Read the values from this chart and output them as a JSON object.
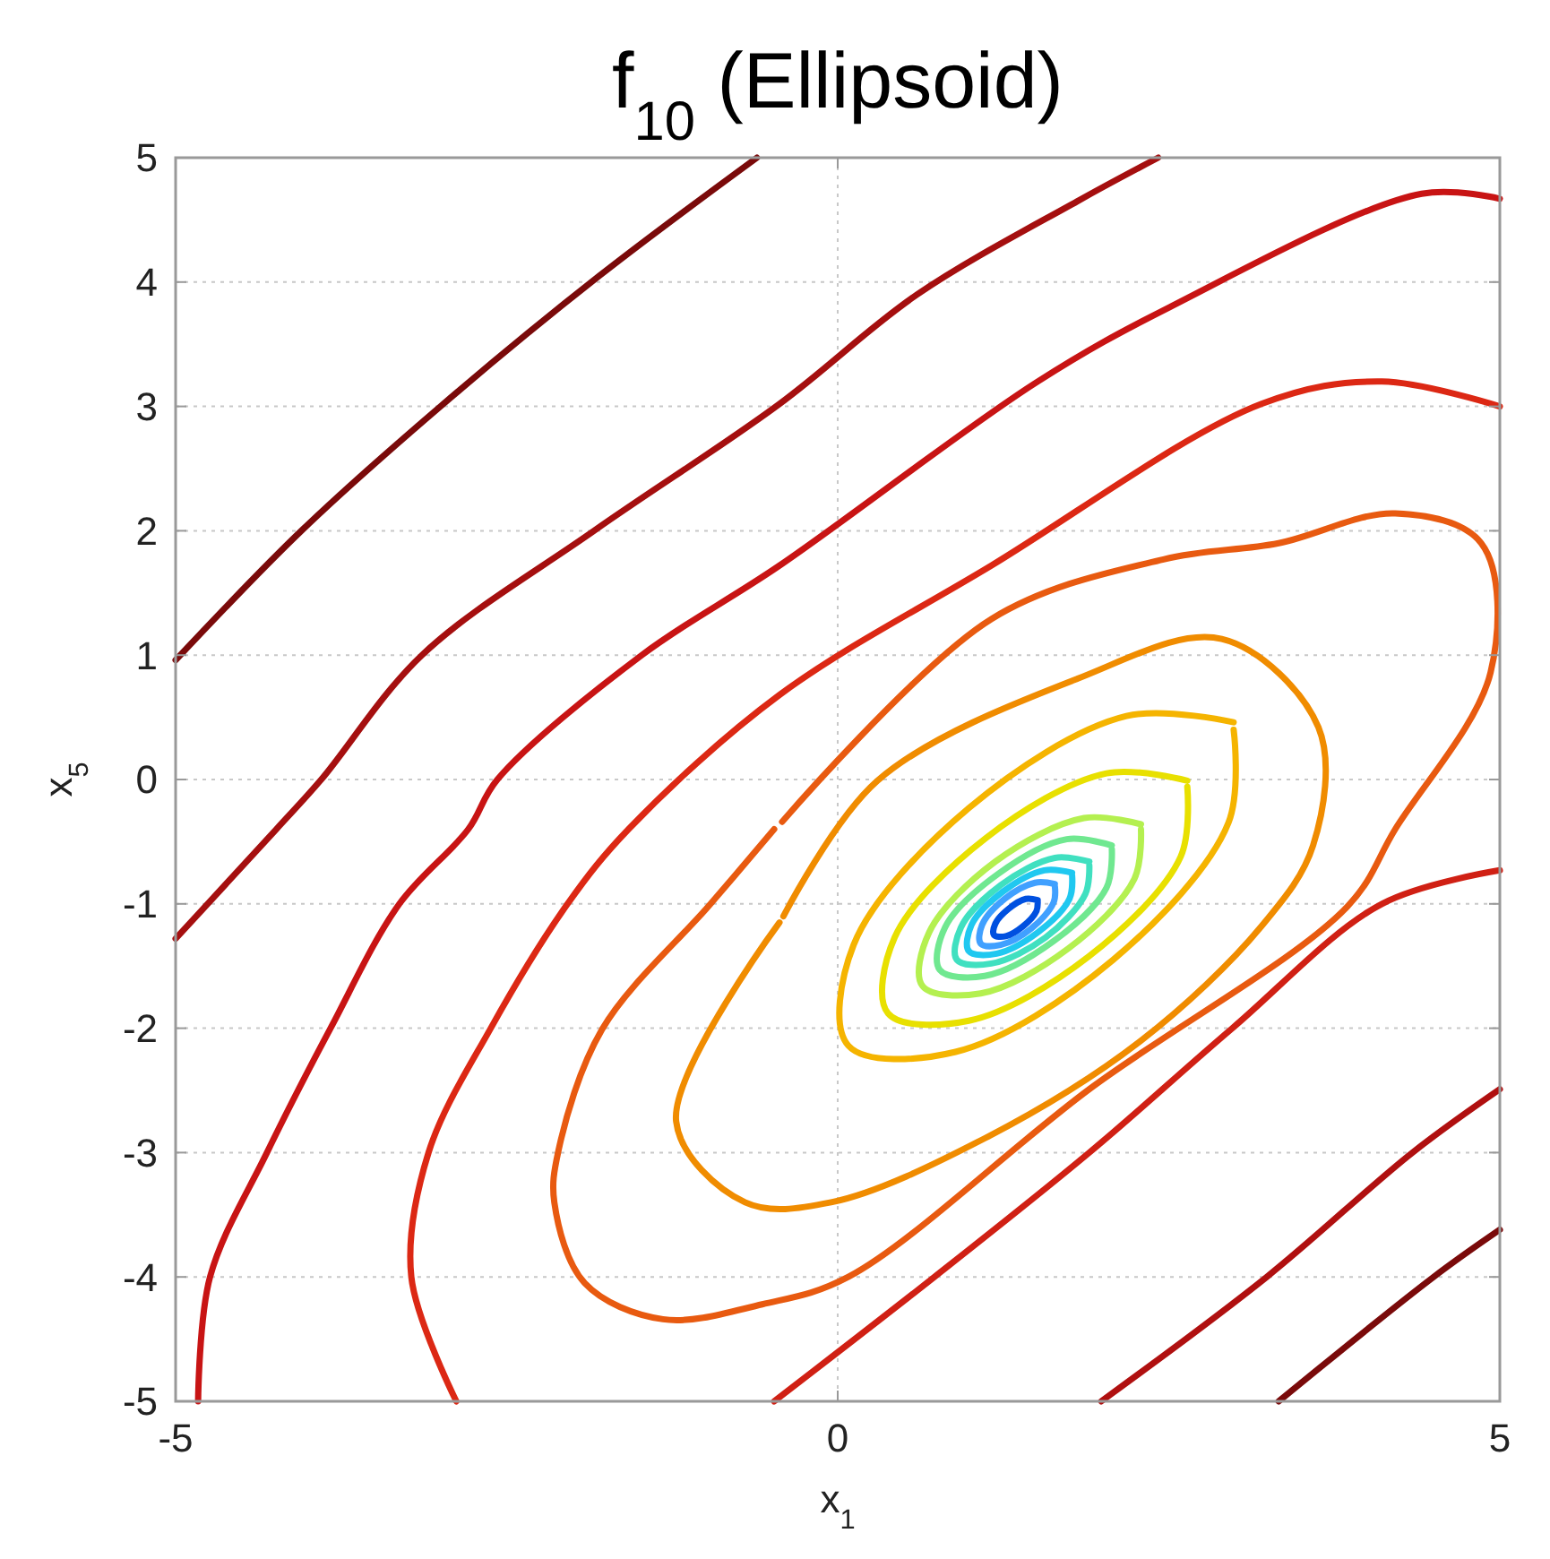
{
  "chart_data": {
    "type": "line",
    "title": "f$_{10}$ (Ellipsoid)",
    "xlabel": "x$_{1}$",
    "ylabel": "x$_{5}$",
    "xlim": [
      -5,
      5
    ],
    "ylim": [
      -5,
      5
    ],
    "xticks": [
      -5,
      0,
      5
    ],
    "yticks": [
      -5,
      -4,
      -3,
      -2,
      -1,
      0,
      1,
      2,
      3,
      4,
      5
    ],
    "grid": true,
    "series": [
      {
        "color": "#7a0a0a",
        "x": [
          -5,
          -4.05,
          -3.0,
          -1.8,
          -0.61
        ],
        "values": [
          0.96,
          2,
          3,
          4.05,
          5
        ]
      },
      {
        "color": "#7a0a0a",
        "x": [
          3.33,
          4.5,
          5
        ],
        "values": [
          -5,
          -4,
          -3.62
        ]
      },
      {
        "color": "#a50f0f",
        "x": [
          -5,
          -4.24,
          -3.9,
          -3.14,
          -1.84,
          -0.44,
          0.6,
          1.81,
          2.42
        ],
        "values": [
          -1.28,
          -0.4,
          0,
          1,
          2,
          3.02,
          3.9,
          4.65,
          5
        ]
      },
      {
        "color": "#b01010",
        "x": [
          1.99,
          3.24,
          4.34,
          5
        ],
        "values": [
          -5,
          -4,
          -3,
          -2.49
        ]
      },
      {
        "color": "#c81414",
        "x": [
          -4.83,
          -4.74,
          -4.31,
          -3.83,
          -3.31,
          -2.79,
          -2.57,
          -1.48,
          -0.44,
          1.51,
          2.51,
          4.41,
          5
        ],
        "values": [
          -5,
          -4,
          -3,
          -2,
          -1,
          -0.4,
          0,
          1,
          1.72,
          3.2,
          3.8,
          4.71,
          4.67
        ]
      },
      {
        "color": "#d02014",
        "x": [
          -0.48,
          0.73,
          1.9,
          2.98,
          4.11,
          5
        ],
        "values": [
          -5,
          -4,
          -3,
          -2,
          -1,
          -0.73
        ]
      },
      {
        "color": "#dc2814",
        "x": [
          -2.88,
          -3.22,
          -3.09,
          -2.62,
          -2.04,
          -1.58,
          -0.44,
          1.16,
          3.2,
          4.11,
          5
        ],
        "values": [
          -5,
          -4,
          -3,
          -2,
          -1,
          -0.4,
          0.68,
          1.72,
          3.02,
          3.2,
          3.0
        ]
      },
      {
        "color": "#e85a10",
        "x": [
          -0.48,
          -0.96,
          -1.78,
          -2.11,
          -2.14,
          -1.91,
          -1.32,
          -0.57,
          0.08,
          1.9,
          3.85,
          4.21,
          4.93,
          4.86,
          4.21,
          3.33,
          2.46,
          1.16,
          -0.42
        ],
        "values": [
          -0.4,
          -1.0,
          -2.01,
          -2.99,
          -3.4,
          -4.05,
          -4.34,
          -4.22,
          -4.0,
          -2.49,
          -1.02,
          -0.4,
          0.86,
          1.9,
          2.14,
          1.9,
          1.77,
          1.29,
          -0.34
        ]
      },
      {
        "color": "#f08c00",
        "x": [
          -0.44,
          -1.22,
          -0.7,
          -0.05,
          1.12,
          2.29,
          3.2,
          3.59,
          3.63,
          2.9,
          1.81,
          0.3,
          -0.41
        ],
        "values": [
          -1.15,
          -2.75,
          -3.4,
          -3.4,
          -2.88,
          -2.1,
          -1.18,
          -0.53,
          0.42,
          1.13,
          0.81,
          -0.01,
          -1.1
        ]
      },
      {
        "color": "#f5b400",
        "x": [
          2.99,
          2.18,
          0.99,
          0.12,
          0.08,
          0.89,
          2.08,
          2.95,
          2.99
        ],
        "values": [
          0.46,
          0.51,
          -0.23,
          -1.33,
          -2.14,
          -2.19,
          -1.45,
          -0.35,
          0.4
        ]
      },
      {
        "color": "#e8e000",
        "x": [
          2.64,
          2.03,
          1.12,
          0.43,
          0.38,
          0.99,
          1.9,
          2.59,
          2.64
        ],
        "values": [
          -0.01,
          0.05,
          -0.47,
          -1.27,
          -1.88,
          -1.94,
          -1.42,
          -0.62,
          -0.06
        ]
      },
      {
        "color": "#b4f050",
        "x": [
          2.29,
          1.86,
          1.19,
          0.69,
          0.64,
          1.08,
          1.74,
          2.24,
          2.29
        ],
        "values": [
          -0.36,
          -0.31,
          -0.66,
          -1.23,
          -1.66,
          -1.72,
          -1.36,
          -0.8,
          -0.4
        ]
      },
      {
        "color": "#70e890",
        "x": [
          2.07,
          1.73,
          1.21,
          0.81,
          0.77,
          1.11,
          1.63,
          2.03,
          2.07
        ],
        "values": [
          -0.53,
          -0.48,
          -0.76,
          -1.19,
          -1.53,
          -1.58,
          -1.3,
          -0.87,
          -0.56
        ]
      },
      {
        "color": "#40e0c0",
        "x": [
          1.9,
          1.64,
          1.23,
          0.93,
          0.9,
          1.16,
          1.57,
          1.87,
          1.9
        ],
        "values": [
          -0.66,
          -0.63,
          -0.85,
          -1.19,
          -1.45,
          -1.48,
          -1.27,
          -0.92,
          -0.69
        ]
      },
      {
        "color": "#20c8f0",
        "x": [
          1.77,
          1.56,
          1.25,
          1.01,
          0.99,
          1.2,
          1.51,
          1.75,
          1.77
        ],
        "values": [
          -0.75,
          -0.73,
          -0.9,
          -1.17,
          -1.38,
          -1.4,
          -1.23,
          -0.96,
          -0.77
        ]
      },
      {
        "color": "#40a0ff",
        "x": [
          1.64,
          1.49,
          1.26,
          1.09,
          1.08,
          1.23,
          1.46,
          1.63,
          1.64
        ],
        "values": [
          -0.84,
          -0.83,
          -0.96,
          -1.17,
          -1.32,
          -1.33,
          -1.2,
          -0.99,
          -0.86
        ]
      },
      {
        "color": "#0050e0",
        "x": [
          1.51,
          1.42,
          1.29,
          1.19,
          1.18,
          1.27,
          1.4,
          1.5,
          1.51
        ],
        "values": [
          -0.97,
          -0.96,
          -1.04,
          -1.16,
          -1.25,
          -1.26,
          -1.18,
          -1.06,
          -0.98
        ]
      }
    ]
  }
}
